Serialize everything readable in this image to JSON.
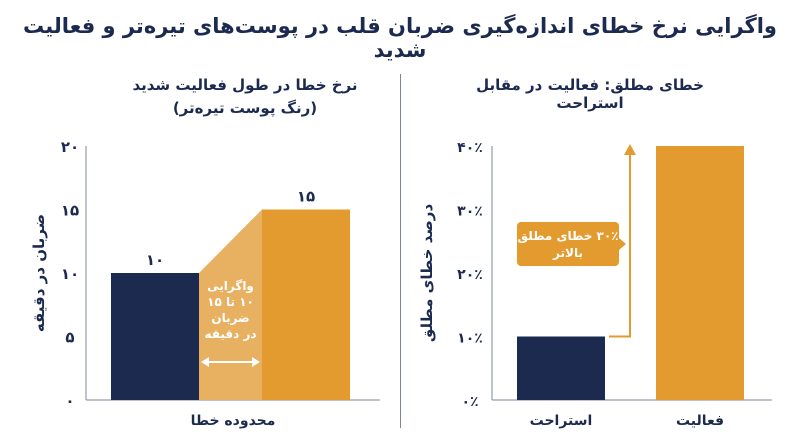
{
  "title": "واگرایی نرخ خطای اندازه‌گیری ضربان قلب در پوست‌های تیره‌تر و فعالیت شدید",
  "colors": {
    "navy": "#1b2a4e",
    "orange": "#e39a2e",
    "light_orange": "#e8b061",
    "text": "#1b2a4e",
    "axis": "#7e8798"
  },
  "chart_data": [
    {
      "type": "bar",
      "title": "نرخ خطا در طول فعالیت شدید",
      "subtitle": "(رنگ پوست تیره‌تر)",
      "ylabel": "ضربان در دقیقه",
      "xlabel": "محدوده خطا",
      "ylim": [
        0,
        20
      ],
      "yticks": [
        "۰",
        "۵",
        "۱۰",
        "۱۵",
        "۲۰"
      ],
      "ytick_values": [
        0,
        5,
        10,
        15,
        20
      ],
      "values": [
        10,
        15
      ],
      "value_labels": [
        "۱۰",
        "۱۵"
      ],
      "band_lines": [
        "واگرایی",
        "۱۰ تا ۱۵",
        "ضربان",
        "در دقیقه"
      ]
    },
    {
      "type": "bar",
      "title": "خطای مطلق: فعالیت در مقابل استراحت",
      "ylabel": "درصد خطای مطلق",
      "ylim": [
        0,
        40
      ],
      "yticks": [
        "۰٪",
        "۱۰٪",
        "۲۰٪",
        "۳۰٪",
        "۴۰٪"
      ],
      "ytick_values": [
        0,
        10,
        20,
        30,
        40
      ],
      "categories": [
        "استراحت",
        "فعالیت"
      ],
      "values": [
        10,
        40
      ],
      "callout_lines": [
        "۳۰٪ خطای مطلق",
        "بالاتر"
      ]
    }
  ]
}
